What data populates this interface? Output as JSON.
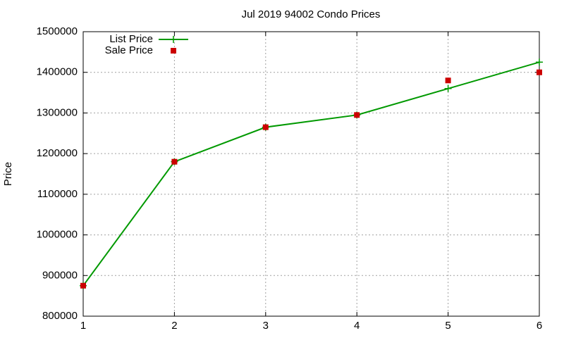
{
  "chart_data": {
    "type": "line",
    "title": "Jul 2019 94002 Condo Prices",
    "y_label": "Price",
    "x": [
      1,
      2,
      3,
      4,
      5,
      6
    ],
    "series": [
      {
        "name": "List Price",
        "color": "#009900",
        "style": "linespoints",
        "values": [
          875000,
          1180000,
          1265000,
          1295000,
          1360000,
          1425000
        ]
      },
      {
        "name": "Sale Price",
        "color": "#cc0000",
        "style": "points",
        "values": [
          875000,
          1180000,
          1265000,
          1295000,
          1380000,
          1400000
        ]
      }
    ],
    "xlim": [
      1,
      6
    ],
    "xticks": [
      1,
      2,
      3,
      4,
      5,
      6
    ],
    "ylim": [
      800000,
      1500000
    ],
    "yticks": [
      800000,
      900000,
      1000000,
      1100000,
      1200000,
      1300000,
      1400000,
      1500000
    ],
    "grid": true,
    "legend": "top-left"
  }
}
